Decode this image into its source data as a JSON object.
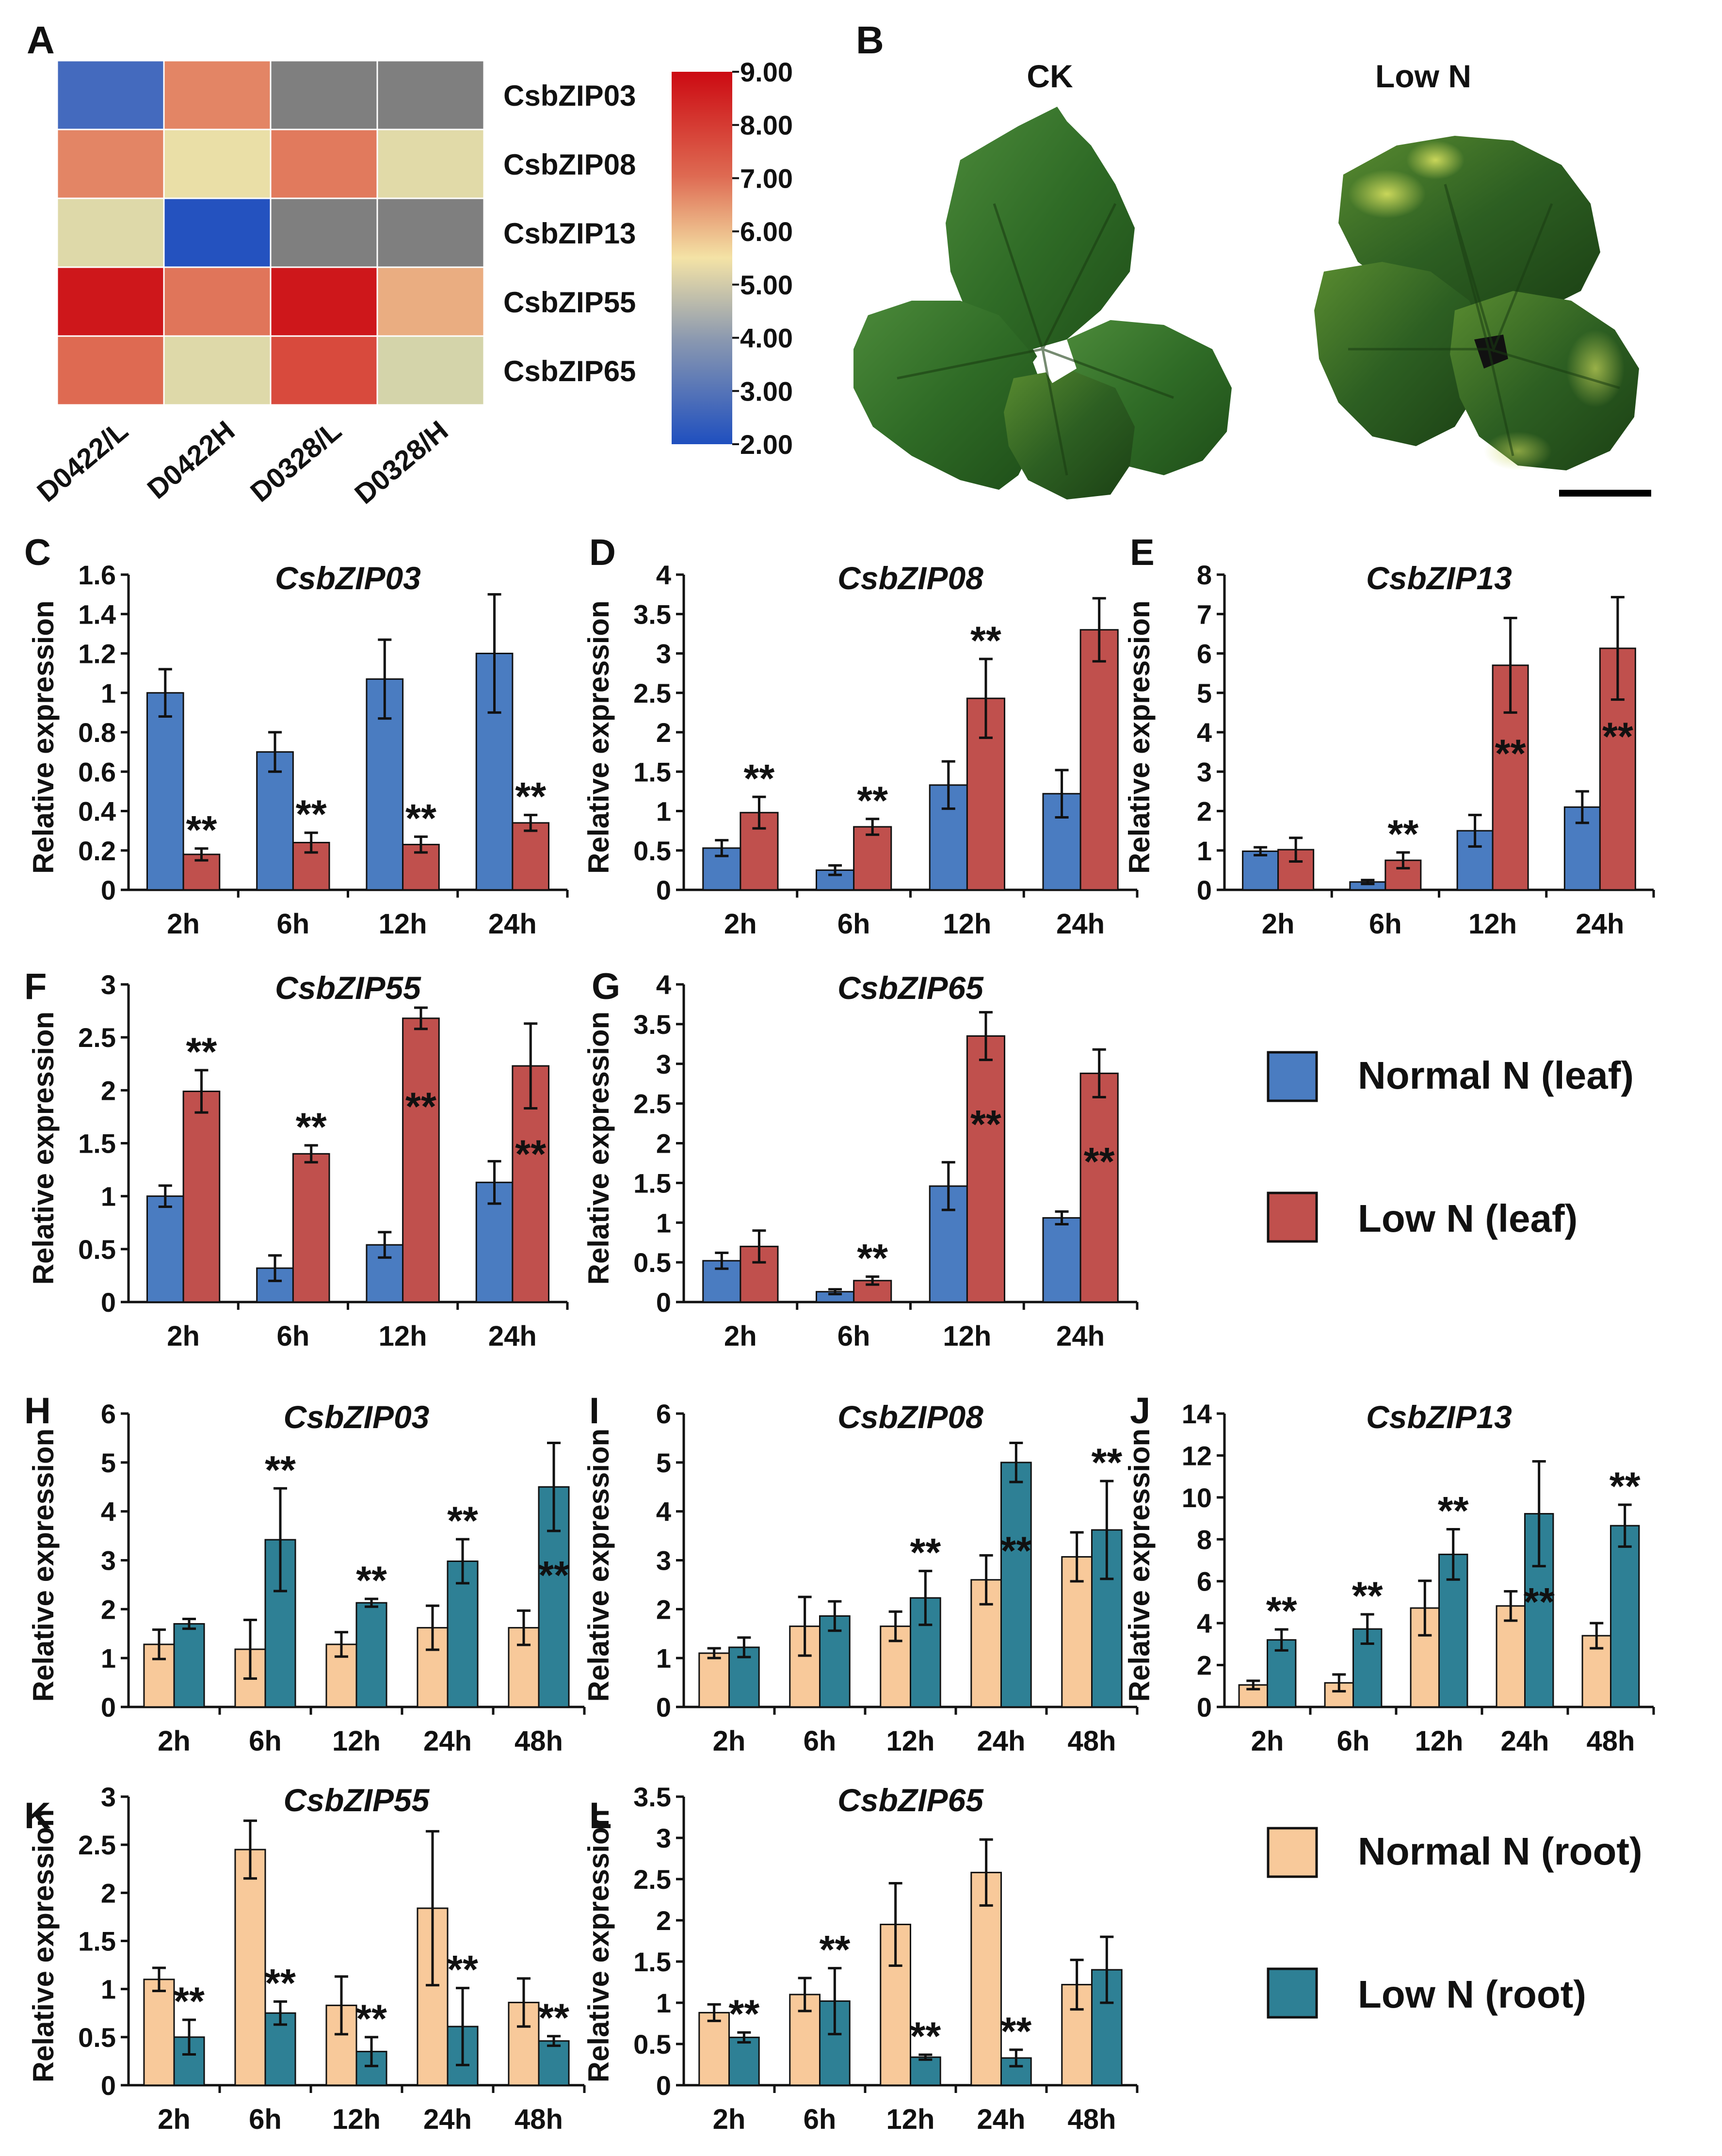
{
  "figure": {
    "panel_letters": [
      "A",
      "B",
      "C",
      "D",
      "E",
      "F",
      "G",
      "H",
      "I",
      "J",
      "K",
      "L"
    ],
    "photo": {
      "ck_label": "CK",
      "low_label": "Low N"
    },
    "legend_leaf": {
      "normal": "Normal N (leaf)",
      "low": "Low N (leaf)"
    },
    "legend_root": {
      "normal": "Normal N (root)",
      "low": "Low N (root)"
    },
    "colors": {
      "normal_leaf": "#4a7cc1",
      "low_leaf": "#c0504d",
      "normal_root": "#f8c99a",
      "low_root": "#2e8095"
    }
  },
  "chart_data": [
    {
      "panel": "A",
      "type": "heatmap",
      "columns": [
        "D0422/L",
        "D0422H",
        "D0328/L",
        "D0328/H"
      ],
      "rows": [
        "CsbZIP03",
        "CsbZIP08",
        "CsbZIP13",
        "CsbZIP55",
        "CsbZIP65"
      ],
      "values": [
        [
          2.8,
          7.0,
          null,
          null
        ],
        [
          7.0,
          5.2,
          7.2,
          4.9
        ],
        [
          4.8,
          2.1,
          null,
          null
        ],
        [
          8.8,
          7.3,
          8.8,
          6.3
        ],
        [
          7.5,
          4.8,
          8.0,
          4.5
        ]
      ],
      "colorbar_ticks": [
        "9.00",
        "8.00",
        "7.00",
        "6.00",
        "5.00",
        "4.00",
        "3.00",
        "2.00"
      ],
      "range": [
        2,
        9
      ]
    },
    {
      "panel": "C",
      "type": "bar",
      "title": "CsbZIP03",
      "ylabel": "Relative expression",
      "categories": [
        "2h",
        "6h",
        "12h",
        "24h"
      ],
      "ylim": [
        0,
        1.6
      ],
      "yticks": [
        "0",
        "0.2",
        "0.4",
        "0.6",
        "0.8",
        "1",
        "1.2",
        "1.4",
        "1.6"
      ],
      "series": [
        {
          "name": "Normal N (leaf)",
          "values": [
            1.0,
            0.7,
            1.07,
            1.2
          ],
          "errors": [
            0.12,
            0.1,
            0.2,
            0.3
          ]
        },
        {
          "name": "Low N (leaf)",
          "values": [
            0.18,
            0.24,
            0.23,
            0.34
          ],
          "errors": [
            0.03,
            0.05,
            0.04,
            0.04
          ]
        }
      ],
      "annotations": [
        {
          "series": 1,
          "index": 0,
          "text": "**"
        },
        {
          "series": 1,
          "index": 1,
          "text": "**"
        },
        {
          "series": 1,
          "index": 2,
          "text": "**"
        },
        {
          "series": 1,
          "index": 3,
          "text": "**"
        }
      ]
    },
    {
      "panel": "D",
      "type": "bar",
      "title": "CsbZIP08",
      "ylabel": "Relative expression",
      "categories": [
        "2h",
        "6h",
        "12h",
        "24h"
      ],
      "ylim": [
        0,
        4
      ],
      "yticks": [
        "0",
        "0.5",
        "1",
        "1.5",
        "2",
        "2.5",
        "3",
        "3.5",
        "4"
      ],
      "series": [
        {
          "name": "Normal N (leaf)",
          "values": [
            0.53,
            0.25,
            1.33,
            1.22
          ],
          "errors": [
            0.1,
            0.06,
            0.3,
            0.3
          ]
        },
        {
          "name": "Low N (leaf)",
          "values": [
            0.98,
            0.8,
            2.43,
            3.3
          ],
          "errors": [
            0.2,
            0.1,
            0.5,
            0.4
          ]
        }
      ],
      "annotations": [
        {
          "series": 1,
          "index": 0,
          "text": "**"
        },
        {
          "series": 1,
          "index": 1,
          "text": "**"
        },
        {
          "series": 1,
          "index": 2,
          "text": "**"
        }
      ]
    },
    {
      "panel": "E",
      "type": "bar",
      "title": "CsbZIP13",
      "ylabel": "Relative expression",
      "categories": [
        "2h",
        "6h",
        "12h",
        "24h"
      ],
      "ylim": [
        0,
        8
      ],
      "yticks": [
        "0",
        "1",
        "2",
        "3",
        "4",
        "5",
        "6",
        "7",
        "8"
      ],
      "series": [
        {
          "name": "Normal N (leaf)",
          "values": [
            0.98,
            0.2,
            1.5,
            2.1
          ],
          "errors": [
            0.1,
            0.05,
            0.4,
            0.4
          ]
        },
        {
          "name": "Low N (leaf)",
          "values": [
            1.02,
            0.75,
            5.7,
            6.13
          ],
          "errors": [
            0.3,
            0.2,
            1.2,
            1.3
          ]
        }
      ],
      "annotations": [
        {
          "series": 1,
          "index": 1,
          "text": "**"
        },
        {
          "series": 1,
          "index": 2,
          "text": "**",
          "inside": true
        },
        {
          "series": 1,
          "index": 3,
          "text": "**",
          "inside": true
        }
      ]
    },
    {
      "panel": "F",
      "type": "bar",
      "title": "CsbZIP55",
      "ylabel": "Relative expression",
      "categories": [
        "2h",
        "6h",
        "12h",
        "24h"
      ],
      "ylim": [
        0,
        3
      ],
      "yticks": [
        "0",
        "0.5",
        "1",
        "1.5",
        "2",
        "2.5",
        "3"
      ],
      "series": [
        {
          "name": "Normal N (leaf)",
          "values": [
            1.0,
            0.32,
            0.54,
            1.13
          ],
          "errors": [
            0.1,
            0.12,
            0.12,
            0.2
          ]
        },
        {
          "name": "Low N (leaf)",
          "values": [
            1.99,
            1.4,
            2.68,
            2.23
          ],
          "errors": [
            0.2,
            0.08,
            0.1,
            0.4
          ]
        }
      ],
      "annotations": [
        {
          "series": 1,
          "index": 0,
          "text": "**"
        },
        {
          "series": 1,
          "index": 1,
          "text": "**"
        },
        {
          "series": 1,
          "index": 2,
          "text": "**",
          "inside": true
        },
        {
          "series": 1,
          "index": 3,
          "text": "**",
          "inside": true
        }
      ]
    },
    {
      "panel": "G",
      "type": "bar",
      "title": "CsbZIP65",
      "ylabel": "Relative expression",
      "categories": [
        "2h",
        "6h",
        "12h",
        "24h"
      ],
      "ylim": [
        0,
        4
      ],
      "yticks": [
        "0",
        "0.5",
        "1",
        "1.5",
        "2",
        "2.5",
        "3",
        "3.5",
        "4"
      ],
      "series": [
        {
          "name": "Normal N (leaf)",
          "values": [
            0.52,
            0.13,
            1.46,
            1.06
          ],
          "errors": [
            0.1,
            0.03,
            0.3,
            0.08
          ]
        },
        {
          "name": "Low N (leaf)",
          "values": [
            0.7,
            0.27,
            3.35,
            2.88
          ],
          "errors": [
            0.2,
            0.05,
            0.3,
            0.3
          ]
        }
      ],
      "annotations": [
        {
          "series": 1,
          "index": 1,
          "text": "**"
        },
        {
          "series": 1,
          "index": 2,
          "text": "**",
          "inside": true
        },
        {
          "series": 1,
          "index": 3,
          "text": "**",
          "inside": true
        }
      ]
    },
    {
      "panel": "H",
      "type": "bar",
      "title": "CsbZIP03",
      "ylabel": "Relative expression",
      "categories": [
        "2h",
        "6h",
        "12h",
        "24h",
        "48h"
      ],
      "ylim": [
        0,
        6
      ],
      "yticks": [
        "0",
        "1",
        "2",
        "3",
        "4",
        "5",
        "6"
      ],
      "series": [
        {
          "name": "Normal N (root)",
          "values": [
            1.28,
            1.18,
            1.28,
            1.62,
            1.62
          ],
          "errors": [
            0.3,
            0.6,
            0.25,
            0.45,
            0.35
          ]
        },
        {
          "name": "Low N (root)",
          "values": [
            1.7,
            3.42,
            2.13,
            2.98,
            4.5
          ],
          "errors": [
            0.1,
            1.05,
            0.08,
            0.45,
            0.9
          ]
        }
      ],
      "annotations": [
        {
          "series": 1,
          "index": 1,
          "text": "**"
        },
        {
          "series": 1,
          "index": 2,
          "text": "**"
        },
        {
          "series": 1,
          "index": 3,
          "text": "**"
        },
        {
          "series": 1,
          "index": 4,
          "text": "**",
          "inside": true
        }
      ]
    },
    {
      "panel": "I",
      "type": "bar",
      "title": "CsbZIP08",
      "ylabel": "Relative expression",
      "categories": [
        "2h",
        "6h",
        "12h",
        "24h",
        "48h"
      ],
      "ylim": [
        0,
        6
      ],
      "yticks": [
        "0",
        "1",
        "2",
        "3",
        "4",
        "5",
        "6"
      ],
      "series": [
        {
          "name": "Normal N (root)",
          "values": [
            1.1,
            1.65,
            1.65,
            2.6,
            3.07
          ],
          "errors": [
            0.1,
            0.6,
            0.3,
            0.5,
            0.5
          ]
        },
        {
          "name": "Low N (root)",
          "values": [
            1.22,
            1.86,
            2.23,
            5.0,
            3.62
          ],
          "errors": [
            0.2,
            0.3,
            0.55,
            0.4,
            1.0
          ]
        }
      ],
      "annotations": [
        {
          "series": 1,
          "index": 2,
          "text": "**"
        },
        {
          "series": 1,
          "index": 3,
          "text": "**",
          "inside": true
        },
        {
          "series": 1,
          "index": 4,
          "text": "**"
        }
      ]
    },
    {
      "panel": "J",
      "type": "bar",
      "title": "CsbZIP13",
      "ylabel": "Relative expression",
      "categories": [
        "2h",
        "6h",
        "12h",
        "24h",
        "48h"
      ],
      "ylim": [
        0,
        14
      ],
      "yticks": [
        "0",
        "2",
        "4",
        "6",
        "8",
        "10",
        "12",
        "14"
      ],
      "series": [
        {
          "name": "Normal N (root)",
          "values": [
            1.05,
            1.15,
            4.72,
            4.82,
            3.4
          ],
          "errors": [
            0.2,
            0.4,
            1.3,
            0.7,
            0.6
          ]
        },
        {
          "name": "Low N (root)",
          "values": [
            3.2,
            3.72,
            7.28,
            9.22,
            8.65
          ],
          "errors": [
            0.5,
            0.7,
            1.2,
            2.5,
            1.0
          ]
        }
      ],
      "annotations": [
        {
          "series": 1,
          "index": 0,
          "text": "**"
        },
        {
          "series": 1,
          "index": 1,
          "text": "**"
        },
        {
          "series": 1,
          "index": 2,
          "text": "**"
        },
        {
          "series": 1,
          "index": 3,
          "text": "**",
          "inside": true
        },
        {
          "series": 1,
          "index": 4,
          "text": "**"
        }
      ]
    },
    {
      "panel": "K",
      "type": "bar",
      "title": "CsbZIP55",
      "ylabel": "Relative expression",
      "categories": [
        "2h",
        "6h",
        "12h",
        "24h",
        "48h"
      ],
      "ylim": [
        0,
        3
      ],
      "yticks": [
        "0",
        "0.5",
        "1",
        "1.5",
        "2",
        "2.5",
        "3"
      ],
      "series": [
        {
          "name": "Normal N (root)",
          "values": [
            1.1,
            2.45,
            0.83,
            1.84,
            0.86
          ],
          "errors": [
            0.12,
            0.3,
            0.3,
            0.8,
            0.25
          ]
        },
        {
          "name": "Low N (root)",
          "values": [
            0.5,
            0.75,
            0.35,
            0.61,
            0.46
          ],
          "errors": [
            0.18,
            0.12,
            0.15,
            0.4,
            0.05
          ]
        }
      ],
      "annotations": [
        {
          "series": 1,
          "index": 0,
          "text": "**"
        },
        {
          "series": 1,
          "index": 1,
          "text": "**"
        },
        {
          "series": 1,
          "index": 2,
          "text": "**"
        },
        {
          "series": 1,
          "index": 3,
          "text": "**"
        },
        {
          "series": 1,
          "index": 4,
          "text": "**"
        }
      ]
    },
    {
      "panel": "L",
      "type": "bar",
      "title": "CsbZIP65",
      "ylabel": "Relative expression",
      "categories": [
        "2h",
        "6h",
        "12h",
        "24h",
        "48h"
      ],
      "ylim": [
        0,
        3.5
      ],
      "yticks": [
        "0",
        "0.5",
        "1",
        "1.5",
        "2",
        "2.5",
        "3",
        "3.5"
      ],
      "series": [
        {
          "name": "Normal N (root)",
          "values": [
            0.88,
            1.1,
            1.95,
            2.58,
            1.22
          ],
          "errors": [
            0.1,
            0.2,
            0.5,
            0.4,
            0.3
          ]
        },
        {
          "name": "Low N (root)",
          "values": [
            0.58,
            1.02,
            0.34,
            0.33,
            1.4
          ],
          "errors": [
            0.06,
            0.4,
            0.03,
            0.1,
            0.4
          ]
        }
      ],
      "annotations": [
        {
          "series": 1,
          "index": 0,
          "text": "**"
        },
        {
          "series": 1,
          "index": 1,
          "text": "**"
        },
        {
          "series": 1,
          "index": 2,
          "text": "**"
        },
        {
          "series": 1,
          "index": 3,
          "text": "**"
        }
      ]
    }
  ]
}
